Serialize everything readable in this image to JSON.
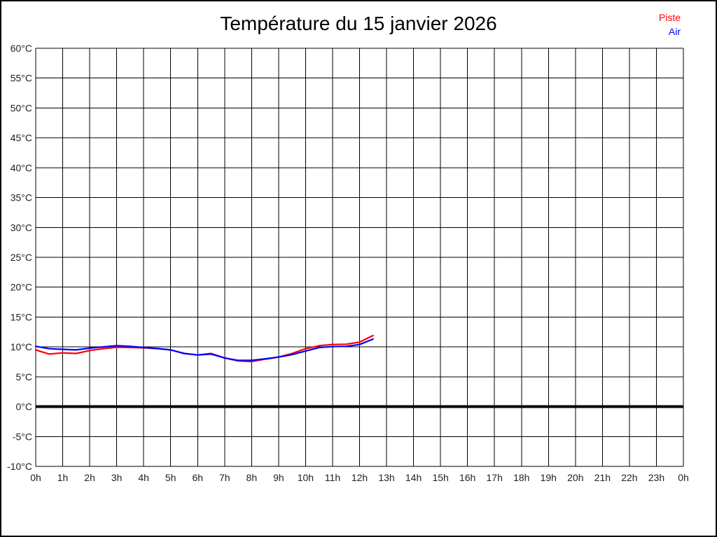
{
  "window": {
    "background": "#ffffff",
    "border_color": "#000000"
  },
  "chart_data": {
    "type": "line",
    "title": "Température du 15 janvier 2026",
    "xlabel": "",
    "ylabel": "",
    "xlim": [
      0,
      24
    ],
    "ylim": [
      -10,
      60
    ],
    "grid": true,
    "grid_color": "#000000",
    "legend_position": "top-right",
    "x_tick_labels": [
      "0h",
      "1h",
      "2h",
      "3h",
      "4h",
      "5h",
      "6h",
      "7h",
      "8h",
      "9h",
      "10h",
      "11h",
      "12h",
      "13h",
      "14h",
      "15h",
      "16h",
      "17h",
      "18h",
      "19h",
      "20h",
      "21h",
      "22h",
      "23h",
      "0h"
    ],
    "y_tick_labels": [
      "60°C",
      "55°C",
      "50°C",
      "45°C",
      "40°C",
      "35°C",
      "30°C",
      "25°C",
      "20°C",
      "15°C",
      "10°C",
      "5°C",
      "0°C",
      "-5°C",
      "-10°C"
    ],
    "y_tick_values": [
      60,
      55,
      50,
      45,
      40,
      35,
      30,
      25,
      20,
      15,
      10,
      5,
      0,
      -5,
      -10
    ],
    "zero_line": {
      "value": 0,
      "color": "#000000",
      "width": 4
    },
    "x": [
      0,
      0.5,
      1,
      1.5,
      2,
      2.5,
      3,
      3.5,
      4,
      4.5,
      5,
      5.5,
      6,
      6.5,
      7,
      7.5,
      8,
      8.5,
      9,
      9.5,
      10,
      10.5,
      11,
      11.5,
      12,
      12.5
    ],
    "series": [
      {
        "name": "Piste",
        "color": "#ff0000",
        "values": [
          9.5,
          8.8,
          9.0,
          8.9,
          9.4,
          9.7,
          9.95,
          9.9,
          9.85,
          9.7,
          9.5,
          8.9,
          8.65,
          8.9,
          8.15,
          7.65,
          7.55,
          7.95,
          8.3,
          8.9,
          9.7,
          10.2,
          10.4,
          10.45,
          10.8,
          11.9
        ]
      },
      {
        "name": "Air",
        "color": "#0000ff",
        "values": [
          10.1,
          9.7,
          9.6,
          9.5,
          9.8,
          10.0,
          10.2,
          10.1,
          9.9,
          9.75,
          9.5,
          8.9,
          8.65,
          8.8,
          8.15,
          7.75,
          7.75,
          8.0,
          8.3,
          8.7,
          9.3,
          9.9,
          10.05,
          10.1,
          10.4,
          11.3
        ]
      }
    ],
    "tick_label_color": "#222222",
    "tick_font_size": 14
  }
}
